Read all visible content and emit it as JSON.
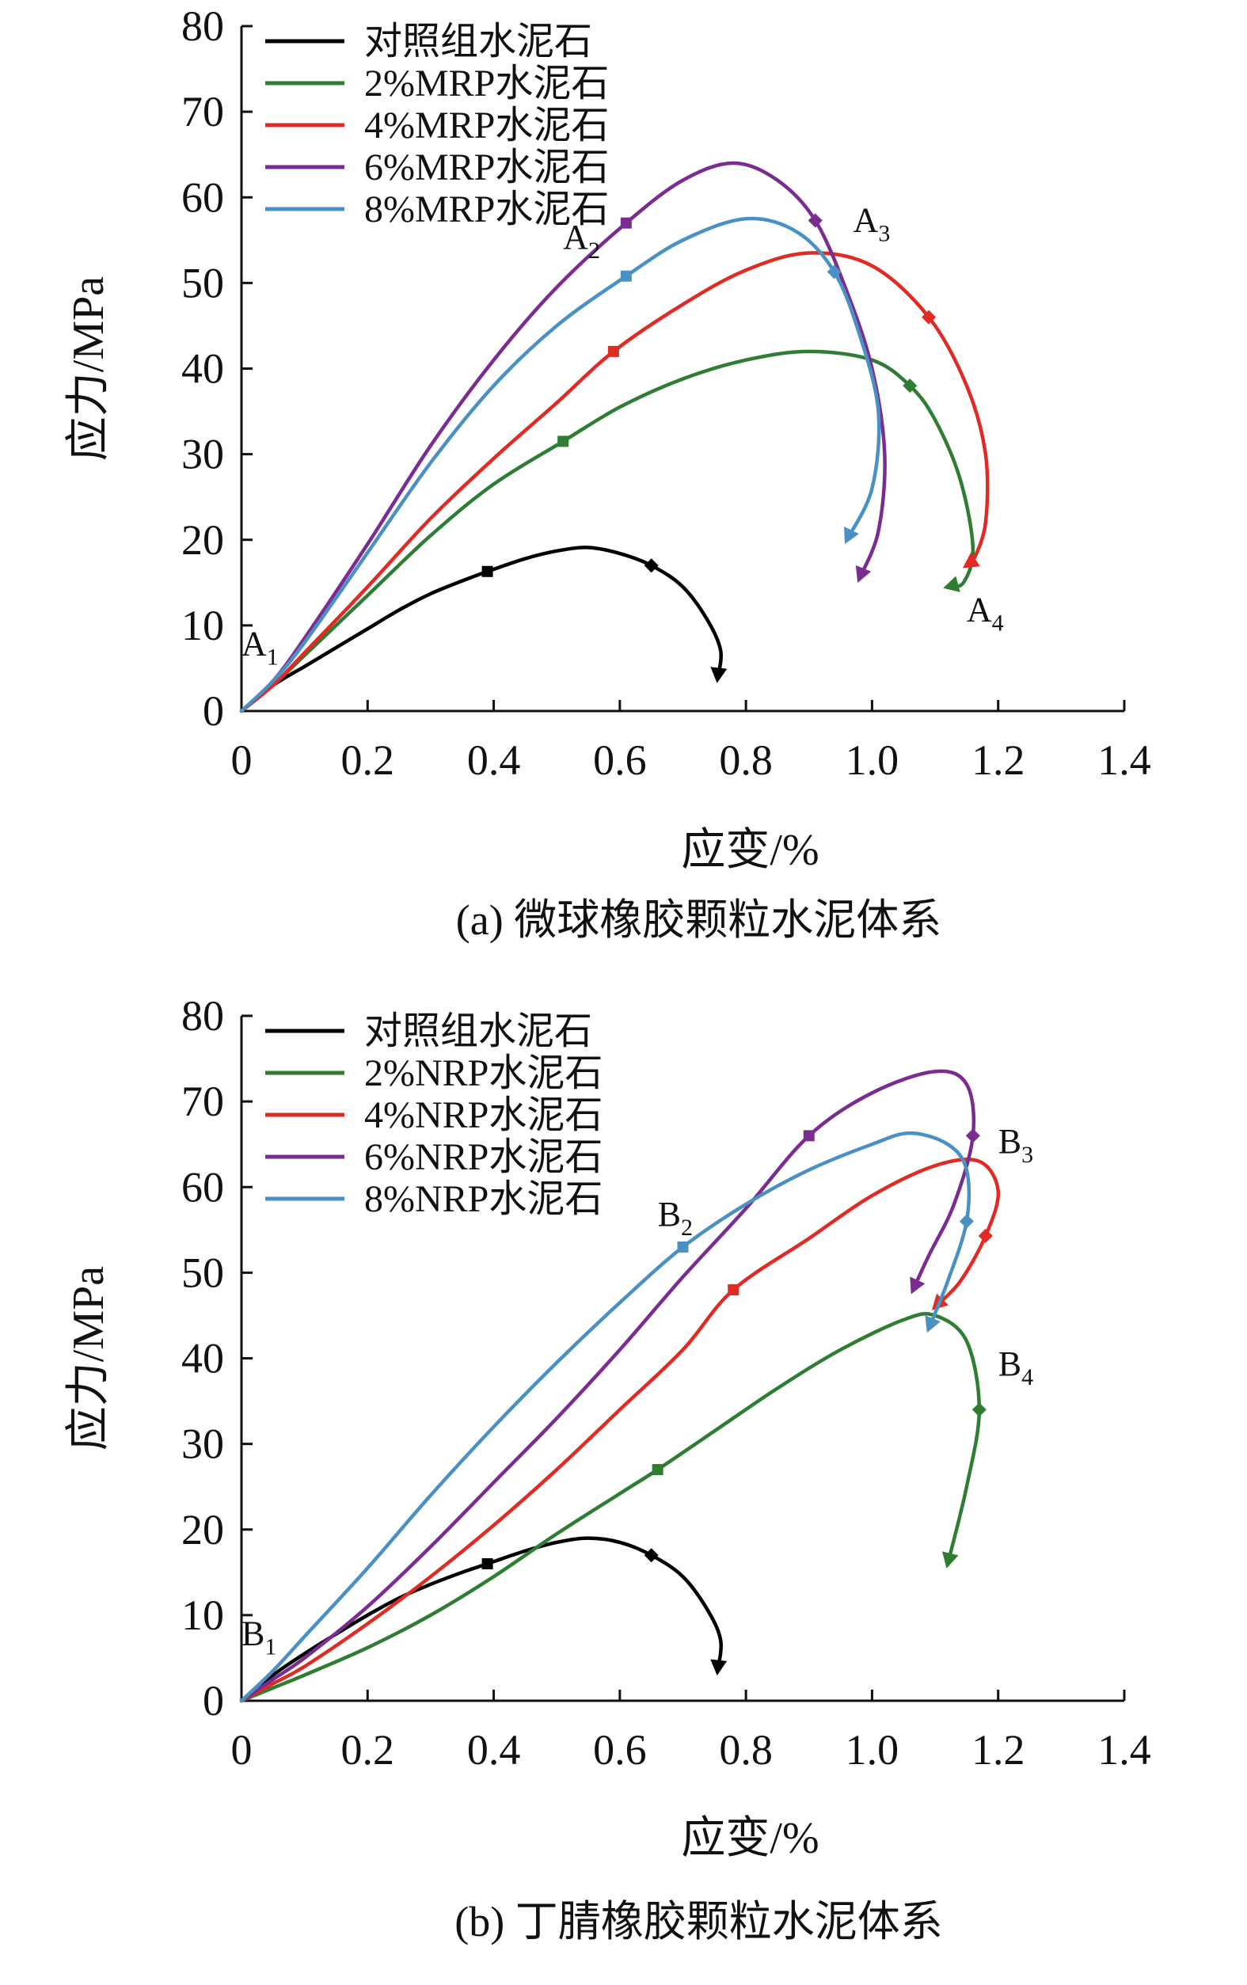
{
  "chart_data": [
    {
      "type": "line",
      "caption": "(a) 微球橡胶颗粒水泥体系",
      "xlabel": "应变/%",
      "ylabel": "应力/MPa",
      "xlim": [
        0,
        1.4
      ],
      "ylim": [
        0,
        80
      ],
      "xticks": [
        "0",
        "0.2",
        "0.4",
        "0.6",
        "0.8",
        "1.0",
        "1.2",
        "1.4"
      ],
      "yticks": [
        "0",
        "10",
        "20",
        "30",
        "40",
        "50",
        "60",
        "70",
        "80"
      ],
      "legend_position": "top-left",
      "series": [
        {
          "name": "对照组水泥石",
          "color": "#000000",
          "end_marker": "arrow",
          "points": [
            [
              0,
              0
            ],
            [
              0.05,
              3
            ],
            [
              0.1,
              5.2
            ],
            [
              0.15,
              7.4
            ],
            [
              0.2,
              9.6
            ],
            [
              0.25,
              11.8
            ],
            [
              0.3,
              13.7
            ],
            [
              0.35,
              15.2
            ],
            [
              0.39,
              16.3
            ],
            [
              0.45,
              17.8
            ],
            [
              0.5,
              18.7
            ],
            [
              0.55,
              19.1
            ],
            [
              0.6,
              18.4
            ],
            [
              0.65,
              17
            ],
            [
              0.7,
              14.5
            ],
            [
              0.74,
              10.5
            ],
            [
              0.76,
              7
            ],
            [
              0.755,
              3.8
            ]
          ],
          "markers": [
            [
              0.39,
              16.3
            ],
            [
              0.65,
              17
            ]
          ]
        },
        {
          "name": "2%MRP水泥石",
          "color": "#2e7d32",
          "end_marker": "triangle",
          "points": [
            [
              0,
              0
            ],
            [
              0.05,
              3
            ],
            [
              0.1,
              6.5
            ],
            [
              0.2,
              13.5
            ],
            [
              0.3,
              20.5
            ],
            [
              0.4,
              26.5
            ],
            [
              0.51,
              31.5
            ],
            [
              0.6,
              35.5
            ],
            [
              0.7,
              38.8
            ],
            [
              0.8,
              41
            ],
            [
              0.9,
              42
            ],
            [
              1.0,
              41
            ],
            [
              1.06,
              38
            ],
            [
              1.1,
              34
            ],
            [
              1.14,
              27
            ],
            [
              1.16,
              19
            ],
            [
              1.145,
              15
            ],
            [
              1.12,
              14.5
            ]
          ],
          "markers": [
            [
              0.51,
              31.5
            ],
            [
              1.06,
              38
            ]
          ]
        },
        {
          "name": "4%MRP水泥石",
          "color": "#e02b24",
          "end_marker": "triangle",
          "points": [
            [
              0,
              0
            ],
            [
              0.05,
              3
            ],
            [
              0.1,
              6.8
            ],
            [
              0.2,
              14.5
            ],
            [
              0.3,
              22.5
            ],
            [
              0.4,
              29.5
            ],
            [
              0.5,
              36
            ],
            [
              0.59,
              42
            ],
            [
              0.7,
              47.5
            ],
            [
              0.8,
              51.5
            ],
            [
              0.9,
              53.5
            ],
            [
              1.0,
              52
            ],
            [
              1.09,
              46
            ],
            [
              1.15,
              38
            ],
            [
              1.18,
              30
            ],
            [
              1.18,
              22
            ],
            [
              1.16,
              17.5
            ],
            [
              1.15,
              17
            ]
          ],
          "markers": [
            [
              0.59,
              42
            ],
            [
              1.09,
              46
            ]
          ]
        },
        {
          "name": "6%MRP水泥石",
          "color": "#7b2c90",
          "end_marker": "triangle",
          "points": [
            [
              0,
              0
            ],
            [
              0.05,
              3.5
            ],
            [
              0.1,
              8.5
            ],
            [
              0.2,
              19.5
            ],
            [
              0.3,
              31
            ],
            [
              0.4,
              41
            ],
            [
              0.5,
              49.5
            ],
            [
              0.61,
              57
            ],
            [
              0.7,
              62
            ],
            [
              0.78,
              64
            ],
            [
              0.85,
              62
            ],
            [
              0.91,
              57.3
            ],
            [
              0.96,
              49
            ],
            [
              1.0,
              40
            ],
            [
              1.02,
              30
            ],
            [
              1.01,
              21
            ],
            [
              0.98,
              15.5
            ]
          ],
          "markers": [
            [
              0.61,
              57
            ],
            [
              0.91,
              57.3
            ]
          ]
        },
        {
          "name": "8%MRP水泥石",
          "color": "#4a90c2",
          "end_marker": "triangle",
          "points": [
            [
              0,
              0
            ],
            [
              0.05,
              3.5
            ],
            [
              0.1,
              8
            ],
            [
              0.2,
              18.5
            ],
            [
              0.3,
              29
            ],
            [
              0.4,
              38
            ],
            [
              0.5,
              45
            ],
            [
              0.61,
              50.8
            ],
            [
              0.7,
              55
            ],
            [
              0.8,
              57.5
            ],
            [
              0.88,
              56
            ],
            [
              0.94,
              51.3
            ],
            [
              0.98,
              44
            ],
            [
              1.01,
              35
            ],
            [
              1.0,
              26
            ],
            [
              0.96,
              20
            ]
          ],
          "markers": [
            [
              0.61,
              50.8
            ],
            [
              0.94,
              51.3
            ]
          ]
        }
      ],
      "annotations": [
        {
          "base": "A",
          "sub": "1",
          "x": 0.0,
          "y": 6.5
        },
        {
          "base": "A",
          "sub": "2",
          "x": 0.51,
          "y": 54
        },
        {
          "base": "A",
          "sub": "3",
          "x": 0.97,
          "y": 56
        },
        {
          "base": "A",
          "sub": "4",
          "x": 1.15,
          "y": 10.5
        }
      ]
    },
    {
      "type": "line",
      "caption": "(b) 丁腈橡胶颗粒水泥体系",
      "xlabel": "应变/%",
      "ylabel": "应力/MPa",
      "xlim": [
        0,
        1.4
      ],
      "ylim": [
        0,
        80
      ],
      "xticks": [
        "0",
        "0.2",
        "0.4",
        "0.6",
        "0.8",
        "1.0",
        "1.2",
        "1.4"
      ],
      "yticks": [
        "0",
        "10",
        "20",
        "30",
        "40",
        "50",
        "60",
        "70",
        "80"
      ],
      "legend_position": "top-left",
      "series": [
        {
          "name": "对照组水泥石",
          "color": "#000000",
          "end_marker": "arrow",
          "points": [
            [
              0,
              0
            ],
            [
              0.05,
              3
            ],
            [
              0.1,
              5.5
            ],
            [
              0.15,
              7.8
            ],
            [
              0.2,
              10
            ],
            [
              0.25,
              12
            ],
            [
              0.3,
              13.6
            ],
            [
              0.35,
              15
            ],
            [
              0.39,
              16
            ],
            [
              0.45,
              17.5
            ],
            [
              0.5,
              18.5
            ],
            [
              0.55,
              19
            ],
            [
              0.6,
              18.5
            ],
            [
              0.65,
              17
            ],
            [
              0.7,
              14.5
            ],
            [
              0.74,
              10.5
            ],
            [
              0.76,
              7
            ],
            [
              0.755,
              3.5
            ]
          ],
          "markers": [
            [
              0.39,
              16
            ],
            [
              0.65,
              17
            ]
          ]
        },
        {
          "name": "2%NRP水泥石",
          "color": "#2e7d32",
          "end_marker": "triangle",
          "points": [
            [
              0,
              0
            ],
            [
              0.05,
              1.5
            ],
            [
              0.1,
              3
            ],
            [
              0.2,
              6.2
            ],
            [
              0.3,
              10
            ],
            [
              0.4,
              14.5
            ],
            [
              0.5,
              19.5
            ],
            [
              0.6,
              24.2
            ],
            [
              0.66,
              27
            ],
            [
              0.75,
              31.5
            ],
            [
              0.85,
              36.5
            ],
            [
              0.95,
              41
            ],
            [
              1.05,
              44.5
            ],
            [
              1.1,
              45
            ],
            [
              1.15,
              42
            ],
            [
              1.17,
              34
            ],
            [
              1.15,
              25
            ],
            [
              1.12,
              16
            ]
          ],
          "markers": [
            [
              0.66,
              27
            ],
            [
              1.17,
              34
            ]
          ]
        },
        {
          "name": "4%NRP水泥石",
          "color": "#e02b24",
          "end_marker": "triangle",
          "points": [
            [
              0,
              0
            ],
            [
              0.05,
              2
            ],
            [
              0.1,
              4
            ],
            [
              0.2,
              9
            ],
            [
              0.3,
              14.5
            ],
            [
              0.4,
              20.5
            ],
            [
              0.5,
              27
            ],
            [
              0.6,
              34
            ],
            [
              0.7,
              41
            ],
            [
              0.78,
              48
            ],
            [
              0.9,
              54
            ],
            [
              1.0,
              59
            ],
            [
              1.1,
              62.5
            ],
            [
              1.17,
              63
            ],
            [
              1.2,
              59.5
            ],
            [
              1.18,
              54.3
            ],
            [
              1.14,
              49
            ],
            [
              1.1,
              46
            ]
          ],
          "markers": [
            [
              0.78,
              48
            ],
            [
              1.18,
              54.3
            ]
          ]
        },
        {
          "name": "6%NRP水泥石",
          "color": "#7b2c90",
          "end_marker": "triangle",
          "points": [
            [
              0,
              0
            ],
            [
              0.05,
              2.5
            ],
            [
              0.1,
              5
            ],
            [
              0.2,
              11
            ],
            [
              0.3,
              18
            ],
            [
              0.4,
              25.5
            ],
            [
              0.5,
              33
            ],
            [
              0.6,
              41
            ],
            [
              0.7,
              49.5
            ],
            [
              0.8,
              57.5
            ],
            [
              0.9,
              66
            ],
            [
              1.0,
              71
            ],
            [
              1.1,
              73.5
            ],
            [
              1.15,
              72
            ],
            [
              1.16,
              66
            ],
            [
              1.13,
              58
            ],
            [
              1.09,
              52
            ],
            [
              1.065,
              48
            ]
          ],
          "markers": [
            [
              0.9,
              66
            ],
            [
              1.16,
              66
            ]
          ]
        },
        {
          "name": "8%NRP水泥石",
          "color": "#4a90c2",
          "end_marker": "triangle",
          "points": [
            [
              0,
              0
            ],
            [
              0.05,
              3.5
            ],
            [
              0.1,
              7.5
            ],
            [
              0.2,
              15.5
            ],
            [
              0.3,
              24
            ],
            [
              0.4,
              32
            ],
            [
              0.5,
              39.5
            ],
            [
              0.6,
              46.5
            ],
            [
              0.7,
              53
            ],
            [
              0.8,
              58
            ],
            [
              0.9,
              62
            ],
            [
              1.0,
              65
            ],
            [
              1.06,
              66.3
            ],
            [
              1.12,
              65
            ],
            [
              1.15,
              62
            ],
            [
              1.15,
              56
            ],
            [
              1.12,
              49
            ],
            [
              1.09,
              43.5
            ]
          ],
          "markers": [
            [
              0.7,
              53
            ],
            [
              1.15,
              56
            ]
          ]
        }
      ],
      "annotations": [
        {
          "base": "B",
          "sub": "1",
          "x": 0.0,
          "y": 6.5
        },
        {
          "base": "B",
          "sub": "2",
          "x": 0.66,
          "y": 55.5
        },
        {
          "base": "B",
          "sub": "3",
          "x": 1.2,
          "y": 64
        },
        {
          "base": "B",
          "sub": "4",
          "x": 1.2,
          "y": 38
        }
      ]
    }
  ]
}
